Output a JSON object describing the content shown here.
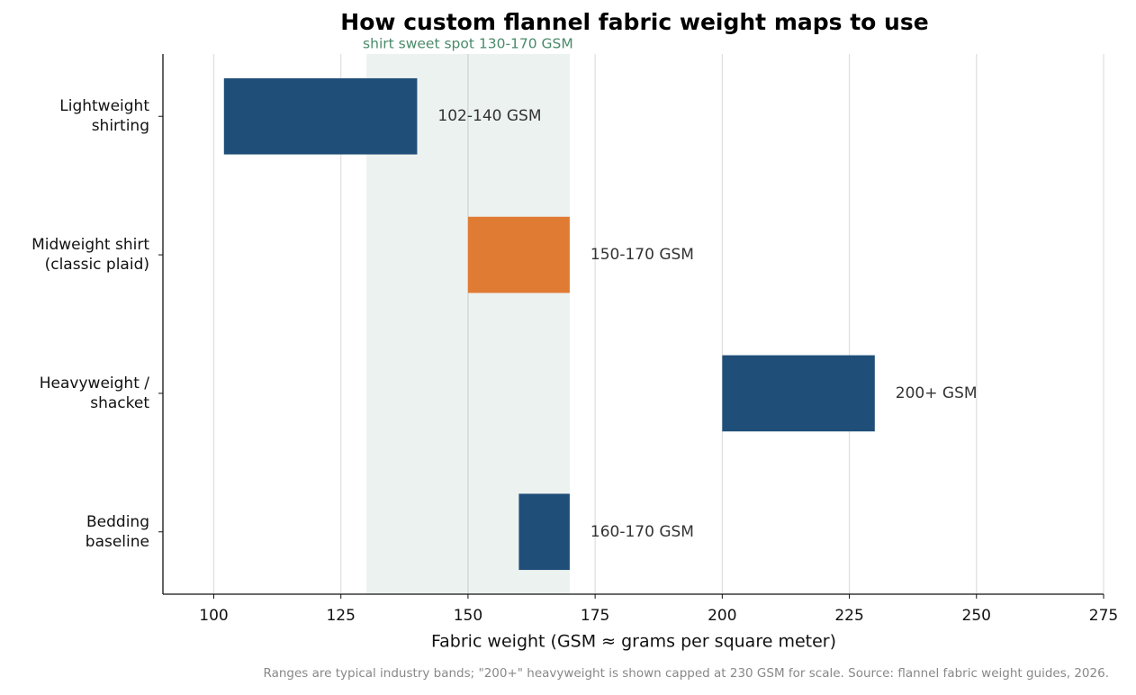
{
  "chart_data": {
    "type": "range-bar",
    "title": "How custom flannel fabric weight maps to use",
    "xlabel": "Fabric weight (GSM ≈ grams per square meter)",
    "footnote": "Ranges are typical industry bands; \"200+\" heavyweight is shown capped at 230 GSM for scale. Source: flannel fabric weight guides, 2026.",
    "categories": [
      "Lightweight\nshirting",
      "Midweight shirt\n(classic plaid)",
      "Heavyweight /\nshacket",
      "Bedding\nbaseline"
    ],
    "starts": [
      102,
      150,
      200,
      160
    ],
    "ends": [
      140,
      170,
      230,
      170
    ],
    "value_labels": [
      "102-140 GSM",
      "150-170 GSM",
      "200+ GSM",
      "160-170 GSM"
    ],
    "colors": [
      "#1f4e79",
      "#e07b34",
      "#1f4e79",
      "#1f4e79"
    ],
    "highlight": {
      "range": [
        130,
        170
      ],
      "label": "shirt sweet spot 130-170 GSM",
      "color": "#4a8a6a"
    },
    "xlim": [
      90,
      275
    ],
    "xticks": [
      100,
      125,
      150,
      175,
      200,
      225,
      250,
      275
    ],
    "grid": true
  }
}
